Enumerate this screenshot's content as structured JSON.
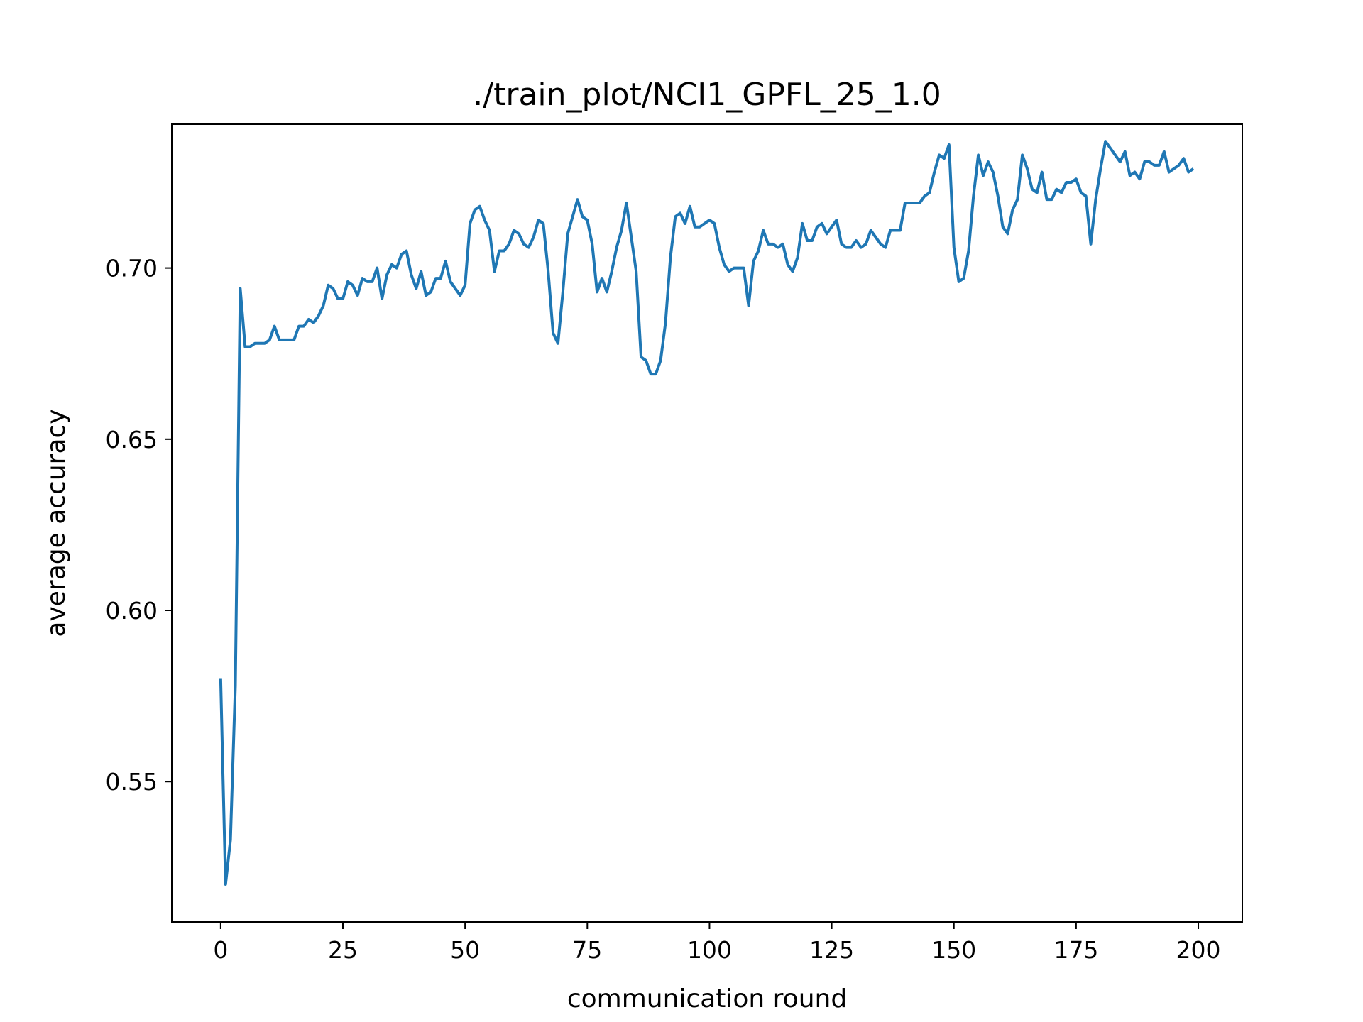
{
  "chart_data": {
    "type": "line",
    "title": "./train_plot/NCI1_GPFL_25_1.0",
    "xlabel": "communication round",
    "ylabel": "average accuracy",
    "xlim": [
      -10,
      209
    ],
    "ylim": [
      0.509,
      0.742
    ],
    "xticks": [
      0,
      25,
      50,
      75,
      100,
      125,
      150,
      175,
      200
    ],
    "yticks": [
      0.55,
      0.6,
      0.65,
      0.7
    ],
    "ytick_labels": [
      "0.55",
      "0.60",
      "0.65",
      "0.70"
    ],
    "grid": false,
    "colors": {
      "line": "#1f77b4",
      "axes": "#000000"
    },
    "series": [
      {
        "values": [
          0.58,
          0.52,
          0.533,
          0.578,
          0.694,
          0.677,
          0.677,
          0.678,
          0.678,
          0.678,
          0.679,
          0.683,
          0.679,
          0.679,
          0.679,
          0.679,
          0.683,
          0.683,
          0.685,
          0.684,
          0.686,
          0.689,
          0.695,
          0.694,
          0.691,
          0.691,
          0.696,
          0.695,
          0.692,
          0.697,
          0.696,
          0.696,
          0.7,
          0.691,
          0.698,
          0.701,
          0.7,
          0.704,
          0.705,
          0.698,
          0.694,
          0.699,
          0.692,
          0.693,
          0.697,
          0.697,
          0.702,
          0.696,
          0.694,
          0.692,
          0.695,
          0.713,
          0.717,
          0.718,
          0.714,
          0.711,
          0.699,
          0.705,
          0.705,
          0.707,
          0.711,
          0.71,
          0.707,
          0.706,
          0.709,
          0.714,
          0.713,
          0.699,
          0.681,
          0.678,
          0.693,
          0.71,
          0.715,
          0.72,
          0.715,
          0.714,
          0.707,
          0.693,
          0.697,
          0.693,
          0.699,
          0.706,
          0.711,
          0.719,
          0.709,
          0.699,
          0.674,
          0.673,
          0.669,
          0.669,
          0.673,
          0.684,
          0.703,
          0.715,
          0.716,
          0.713,
          0.718,
          0.712,
          0.712,
          0.713,
          0.714,
          0.713,
          0.706,
          0.701,
          0.699,
          0.7,
          0.7,
          0.7,
          0.689,
          0.702,
          0.705,
          0.711,
          0.707,
          0.707,
          0.706,
          0.707,
          0.701,
          0.699,
          0.703,
          0.713,
          0.708,
          0.708,
          0.712,
          0.713,
          0.71,
          0.712,
          0.714,
          0.707,
          0.706,
          0.706,
          0.708,
          0.706,
          0.707,
          0.711,
          0.709,
          0.707,
          0.706,
          0.711,
          0.711,
          0.711,
          0.719,
          0.719,
          0.719,
          0.719,
          0.721,
          0.722,
          0.728,
          0.733,
          0.732,
          0.736,
          0.706,
          0.696,
          0.697,
          0.705,
          0.721,
          0.733,
          0.727,
          0.731,
          0.728,
          0.721,
          0.712,
          0.71,
          0.717,
          0.72,
          0.733,
          0.729,
          0.723,
          0.722,
          0.728,
          0.72,
          0.72,
          0.723,
          0.722,
          0.725,
          0.725,
          0.726,
          0.722,
          0.721,
          0.707,
          0.72,
          0.729,
          0.737,
          0.735,
          0.733,
          0.731,
          0.734,
          0.727,
          0.728,
          0.726,
          0.731,
          0.731,
          0.73,
          0.73,
          0.734,
          0.728,
          0.729,
          0.73,
          0.732,
          0.728,
          0.729
        ]
      }
    ]
  }
}
